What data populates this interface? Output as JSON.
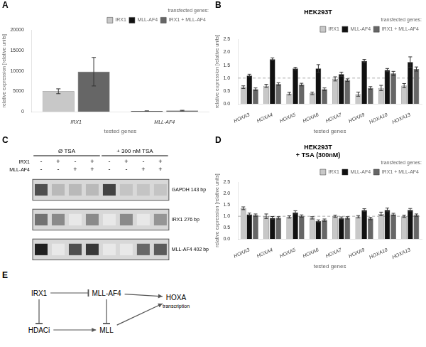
{
  "chart_data": [
    {
      "panel": "A",
      "type": "bar",
      "xlabel": "tested genes",
      "ylabel": "relative expression [relative units]",
      "categories": [
        "IRX1",
        "MLL-AF4"
      ],
      "series": [
        {
          "name": "IRX1",
          "color": "#c8c8c8",
          "values": [
            5000,
            null
          ],
          "errors": [
            600,
            null
          ]
        },
        {
          "name": "MLL-AF4",
          "color": "#111111",
          "values": [
            null,
            155
          ],
          "errors": [
            null,
            20
          ]
        },
        {
          "name": "IRX1 + MLL-AF4",
          "color": "#666666",
          "values": [
            9800,
            240
          ],
          "errors": [
            3500,
            90
          ]
        }
      ],
      "ylim": [
        0,
        20000
      ],
      "yticks": [
        0,
        5000,
        10000,
        15000,
        20000
      ],
      "grid": false,
      "legend": "upper right",
      "legend_title": "transfected genes:"
    },
    {
      "panel": "B",
      "type": "bar",
      "title": "HEK293T",
      "xlabel": "tested genes",
      "ylabel": "relative expression [relative units]",
      "categories": [
        "HOXA3",
        "HOXA4",
        "HOXA5",
        "HOXA6",
        "HOXA7",
        "HOXA9",
        "HOXA10",
        "HOXA13"
      ],
      "series": [
        {
          "name": "IRX1",
          "color": "#c8c8c8",
          "values": [
            0.65,
            0.7,
            0.4,
            0.41,
            0.97,
            0.38,
            0.62,
            0.71
          ],
          "errors": [
            0.05,
            0.06,
            0.05,
            0.05,
            0.08,
            0.08,
            0.1,
            0.08
          ]
        },
        {
          "name": "MLL-AF4",
          "color": "#111111",
          "values": [
            1.1,
            1.73,
            1.37,
            1.37,
            1.15,
            1.66,
            1.31,
            1.62
          ],
          "errors": [
            0.05,
            0.05,
            0.05,
            0.15,
            0.08,
            0.06,
            0.06,
            0.2
          ]
        },
        {
          "name": "IRX1 + MLL-AF4",
          "color": "#666666",
          "values": [
            0.57,
            0.77,
            0.75,
            0.57,
            0.92,
            0.62,
            1.18,
            1.35
          ],
          "errors": [
            0.05,
            0.05,
            0.05,
            0.05,
            0.05,
            0.05,
            0.08,
            0.08
          ]
        }
      ],
      "ylim": [
        0,
        2.5
      ],
      "yticks": [
        {
          "value": 0,
          "label": "0.0"
        },
        0.5,
        {
          "value": 1,
          "label": "1.0"
        },
        1.5,
        {
          "value": 2,
          "label": "2.0"
        },
        2.5
      ],
      "reference_line": 1.0,
      "grid": false,
      "legend": "upper right",
      "legend_title": "transfected genes:"
    },
    {
      "panel": "C",
      "type": "heatmap",
      "rows": [
        "GAPDH 143 bp",
        "IRX1 276 bp",
        "MLL-AF4 402 bp"
      ],
      "cells": [
        [
          0.75,
          0.3,
          0.3,
          0.3,
          0.8,
          0.25,
          0.25,
          0.25
        ],
        [
          0.6,
          0.5,
          0.1,
          0.5,
          0.1,
          0.5,
          0.1,
          0.45
        ],
        [
          0.95,
          0.1,
          0.75,
          0.85,
          0.1,
          0.1,
          0.65,
          0.7
        ]
      ],
      "column_labels": [
        {
          "name": "IRX1",
          "values": [
            "-",
            "+",
            "-",
            "+",
            "-",
            "+",
            "-",
            "+"
          ]
        },
        {
          "name": "MLL-AF4",
          "values": [
            "-",
            "-",
            "+",
            "+",
            "-",
            "-",
            "+",
            "+"
          ]
        }
      ],
      "column_groups": [
        "Ø TSA",
        "Ø TSA",
        "Ø TSA",
        "Ø TSA",
        "+ 300 nM TSA",
        "+ 300 nM TSA",
        "+ 300 nM TSA",
        "+ 300 nM TSA"
      ],
      "grid": false
    },
    {
      "panel": "D",
      "type": "bar",
      "title": "HEK293T\n+ TSA (300nM)",
      "xlabel": "tested genes",
      "ylabel": "relative expression [relative units]",
      "categories": [
        "HOXA3",
        "HOXA4",
        "HOXA5",
        "HOXA6",
        "HOXA7",
        "HOXA9",
        "HOXA10",
        "HOXA13"
      ],
      "series": [
        {
          "name": "IRX1",
          "color": "#c8c8c8",
          "values": [
            1.35,
            1.0,
            0.97,
            0.93,
            1.0,
            0.98,
            1.1,
            1.0
          ],
          "errors": [
            0.06,
            0.1,
            0.05,
            0.05,
            0.05,
            0.05,
            0.08,
            0.05
          ]
        },
        {
          "name": "MLL-AF4",
          "color": "#111111",
          "values": [
            1.08,
            0.93,
            1.17,
            0.79,
            0.92,
            1.27,
            1.28,
            1.28
          ],
          "errors": [
            0.06,
            0.06,
            0.07,
            0.05,
            0.05,
            0.06,
            0.08,
            0.06
          ]
        },
        {
          "name": "IRX1 + MLL-AF4",
          "color": "#666666",
          "values": [
            1.05,
            0.93,
            1.01,
            0.83,
            0.93,
            0.9,
            1.08,
            1.05
          ],
          "errors": [
            0.05,
            0.05,
            0.05,
            0.05,
            0.05,
            0.05,
            0.05,
            0.05
          ]
        }
      ],
      "ylim": [
        0,
        2.5
      ],
      "yticks": [
        {
          "value": 0,
          "label": "0.0"
        },
        0.5,
        {
          "value": 1,
          "label": "1.0"
        },
        1.5,
        {
          "value": 2,
          "label": "2.0"
        },
        2.5
      ],
      "reference_line": 1.0,
      "grid": false,
      "legend": "upper right",
      "legend_title": "transfected genes:"
    },
    {
      "panel": "E",
      "type": "diagram",
      "nodes": [
        {
          "name": "IRX1"
        },
        {
          "name": "MLL-AF4"
        },
        {
          "name": "HOXA",
          "subtitle": "transcription"
        },
        {
          "name": "HDACi"
        },
        {
          "name": "MLL"
        }
      ],
      "edges": [
        {
          "from": "IRX1",
          "to": "MLL-AF4",
          "kind": "inhibits"
        },
        {
          "from": "MLL-AF4",
          "to": "HOXA",
          "kind": "activates"
        },
        {
          "from": "IRX1",
          "to": "HDACi",
          "kind": "inhibits"
        },
        {
          "from": "MLL-AF4",
          "to": "MLL",
          "kind": "inhibits"
        },
        {
          "from": "HDACi",
          "to": "MLL",
          "kind": "activates"
        },
        {
          "from": "MLL",
          "to": "HOXA",
          "kind": "activates"
        }
      ]
    }
  ]
}
